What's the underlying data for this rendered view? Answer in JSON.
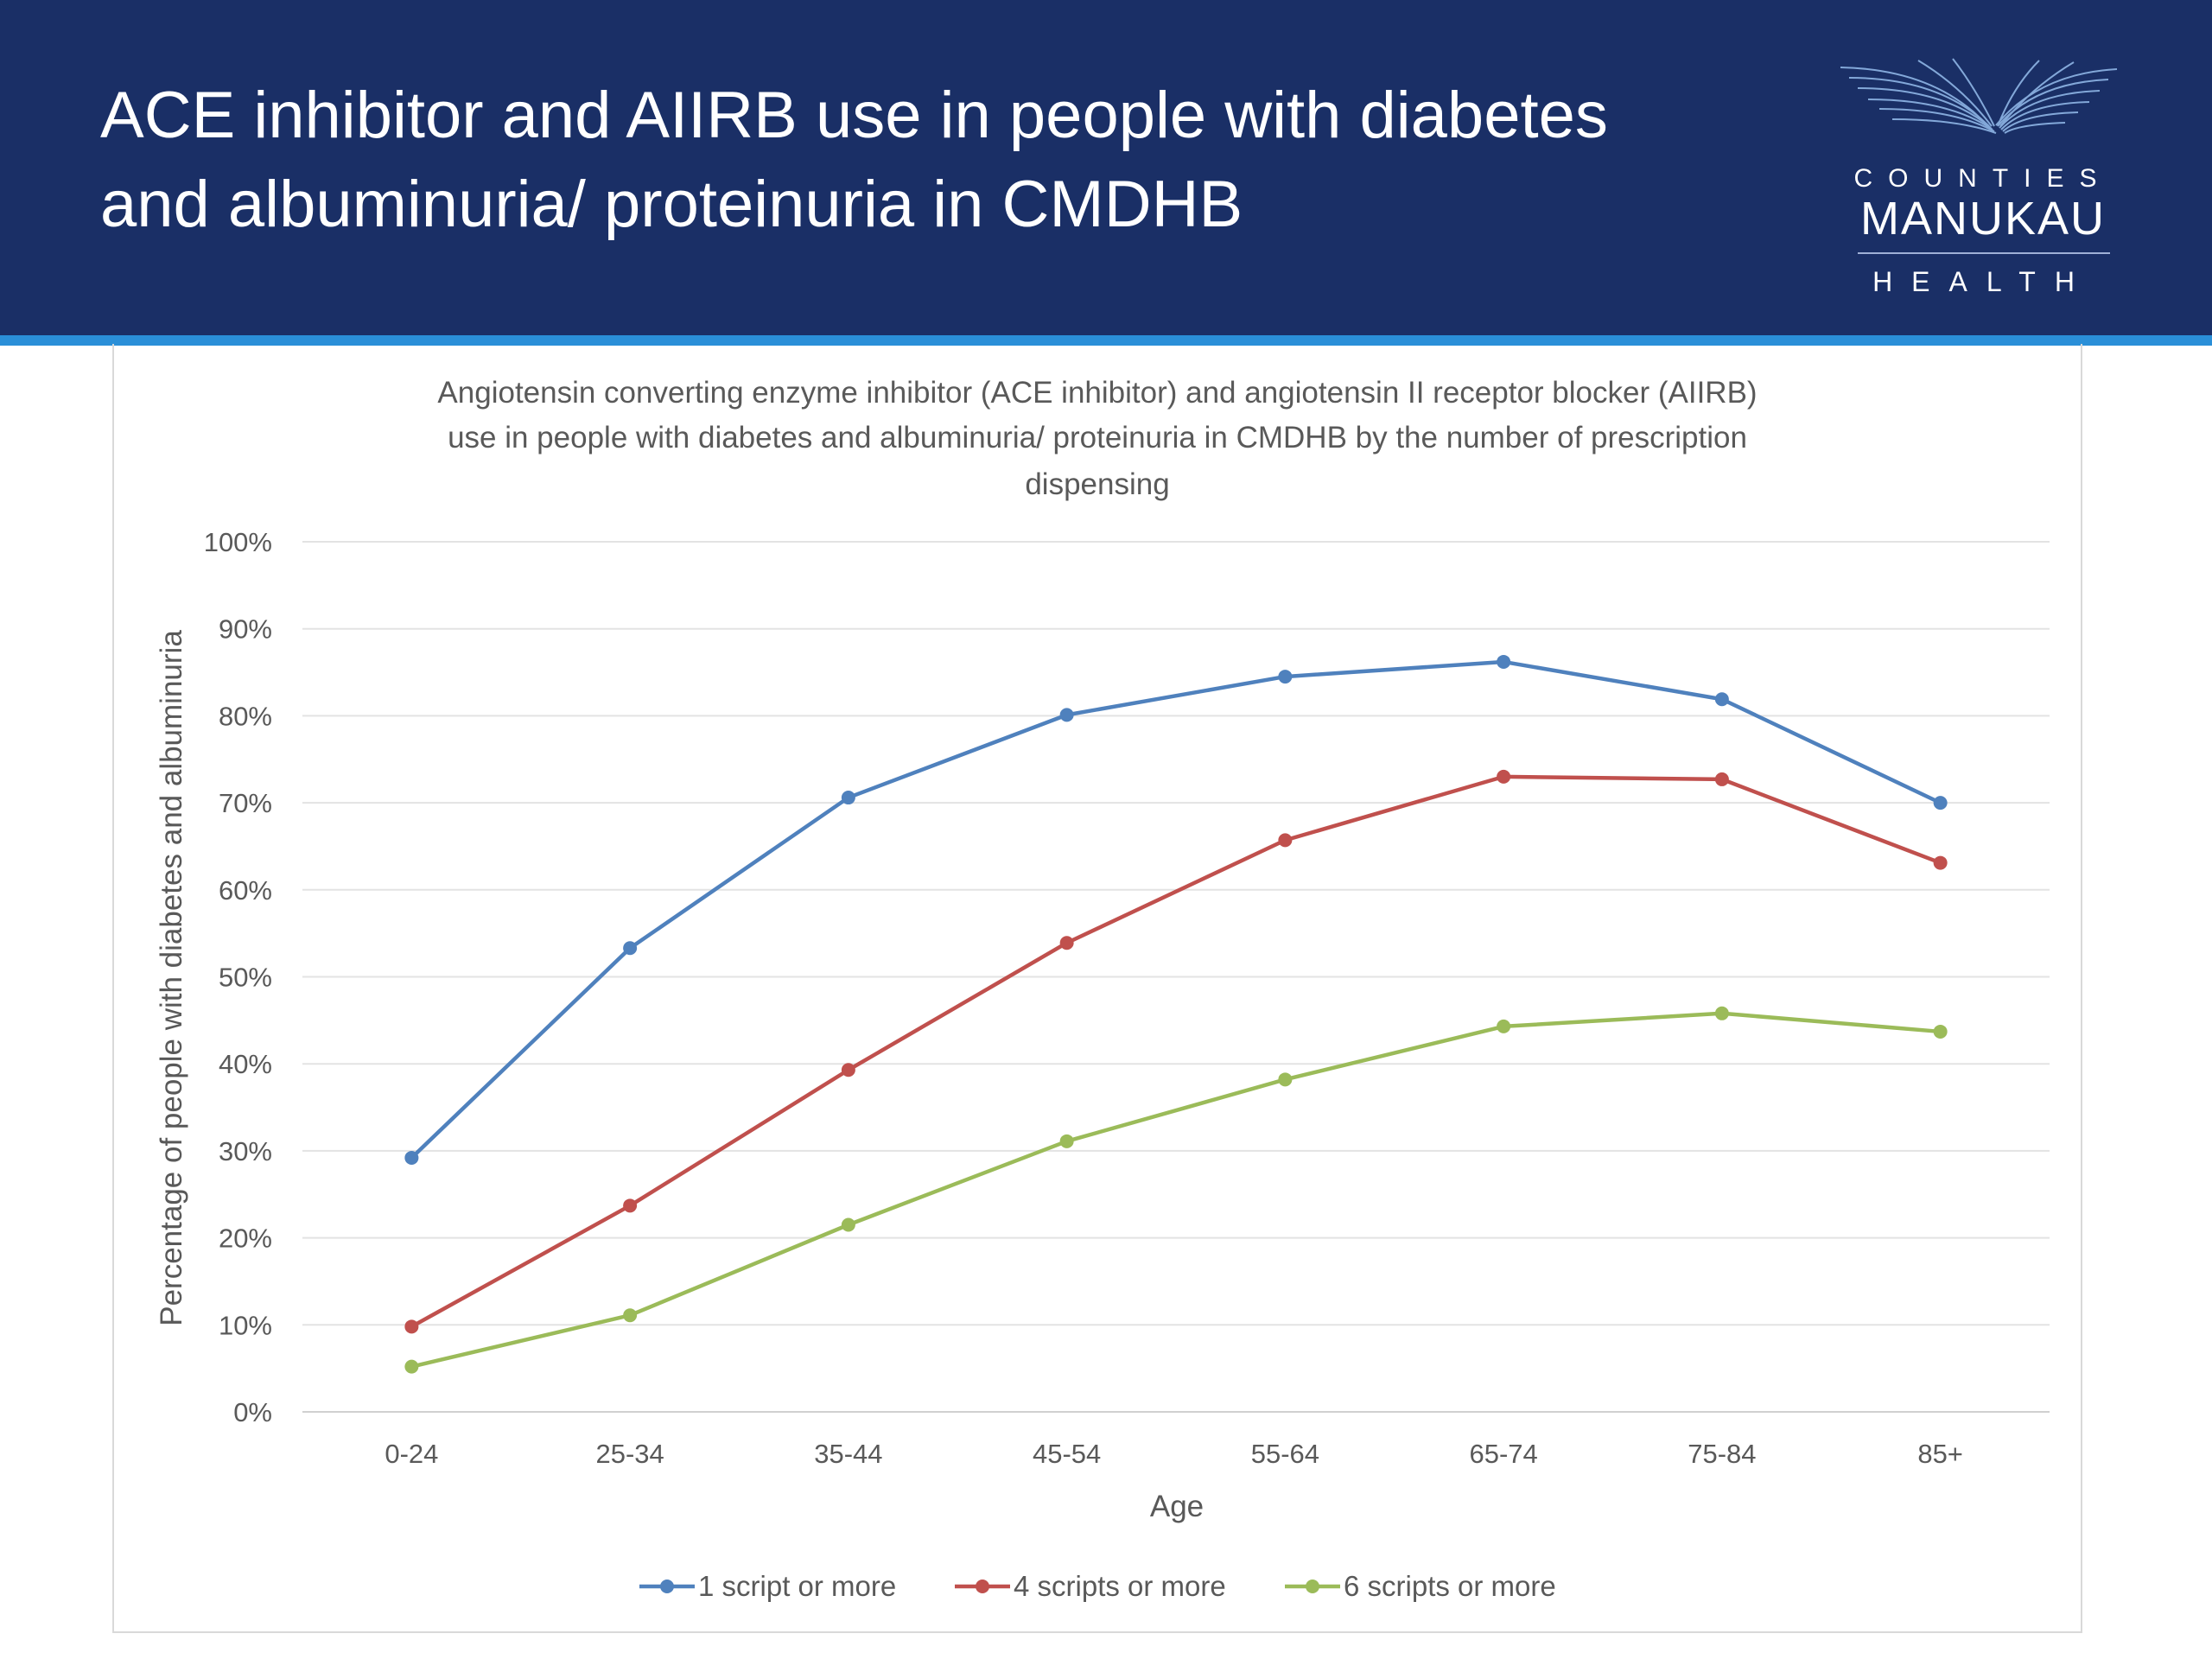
{
  "slide": {
    "title_lines": [
      "ACE inhibitor and AIIRB use in people with diabetes",
      "and albuminuria/ proteinuria in CMDHB"
    ],
    "logo_lines": [
      "COUNTIES",
      "MANUKAU",
      "HEALTH"
    ]
  },
  "colors": {
    "header": "#1a2f66",
    "header_line": "#2a8fd8",
    "series": [
      "#4f81bd",
      "#c0504d",
      "#9bbb59"
    ]
  },
  "chart_data": {
    "type": "line",
    "title_lines": [
      "Angiotensin converting enzyme inhibitor (ACE inhibitor) and angiotensin II receptor blocker (AIIRB)",
      "use in people with diabetes and albuminuria/ proteinuria in CMDHB  by the number of  prescription",
      "dispensing"
    ],
    "xlabel": "Age",
    "ylabel": "Percentage of people with diabetes and albuminuria",
    "categories": [
      "0-24",
      "25-34",
      "35-44",
      "45-54",
      "55-64",
      "65-74",
      "75-84",
      "85+"
    ],
    "ylim": [
      0,
      100
    ],
    "y_ticks": [
      "0%",
      "10%",
      "20%",
      "30%",
      "40%",
      "50%",
      "60%",
      "70%",
      "80%",
      "90%",
      "100%"
    ],
    "grid": true,
    "legend_position": "bottom",
    "series": [
      {
        "name": "1 script or more",
        "values": [
          29.2,
          53.3,
          70.6,
          80.1,
          84.5,
          86.2,
          81.9,
          70.0
        ]
      },
      {
        "name": "4 scripts or more",
        "values": [
          9.8,
          23.7,
          39.3,
          53.9,
          65.7,
          73.0,
          72.7,
          63.1
        ]
      },
      {
        "name": "6 scripts or more",
        "values": [
          5.2,
          11.1,
          21.5,
          31.1,
          38.2,
          44.3,
          45.8,
          43.7
        ]
      }
    ]
  }
}
